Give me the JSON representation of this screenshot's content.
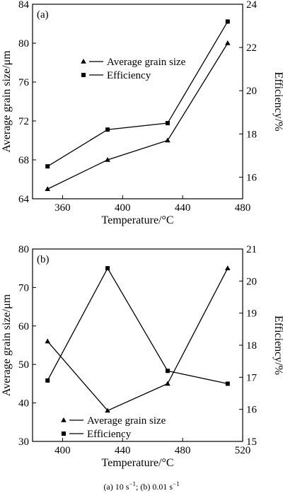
{
  "caption": {
    "a_prefix": "(a) 10 s",
    "a_exp": "−1",
    "sep": "; (b) 0.01 s",
    "b_exp": "−1"
  },
  "chart_data": [
    {
      "type": "line",
      "panel_label": "(a)",
      "x": [
        350,
        390,
        430,
        470
      ],
      "xlabel": "Temperature/°C",
      "xlim": [
        340,
        480
      ],
      "xticks": [
        360,
        400,
        440,
        480
      ],
      "ylabel_left": "Average grain size/μm",
      "ylim_left": [
        64,
        84
      ],
      "yticks_left": [
        64,
        68,
        72,
        76,
        80,
        84
      ],
      "ylabel_right": "Efficiency/%",
      "ylim_right": [
        15,
        24
      ],
      "yticks_right": [
        16,
        18,
        20,
        22,
        24
      ],
      "legend_position": "upper-middle",
      "series": [
        {
          "name": "Average grain size",
          "axis": "left",
          "marker": "triangle",
          "values": [
            65,
            68,
            70,
            80
          ]
        },
        {
          "name": "Efficiency",
          "axis": "right",
          "marker": "square",
          "values": [
            16.5,
            18.2,
            18.5,
            23.2
          ]
        }
      ],
      "grid": false
    },
    {
      "type": "line",
      "panel_label": "(b)",
      "x": [
        390,
        430,
        470,
        510
      ],
      "xlabel": "Temperature/°C",
      "xlim": [
        380,
        520
      ],
      "xticks": [
        400,
        440,
        480,
        520
      ],
      "ylabel_left": "Average grain size/μm",
      "ylim_left": [
        30,
        80
      ],
      "yticks_left": [
        30,
        40,
        50,
        60,
        70,
        80
      ],
      "ylabel_right": "Efficiency/%",
      "ylim_right": [
        15,
        21
      ],
      "yticks_right": [
        15,
        16,
        17,
        18,
        19,
        20,
        21
      ],
      "legend_position": "lower-middle",
      "series": [
        {
          "name": "Average grain size",
          "axis": "left",
          "marker": "triangle",
          "values": [
            56,
            38,
            45,
            75
          ]
        },
        {
          "name": "Efficiency",
          "axis": "right",
          "marker": "square",
          "values": [
            16.9,
            20.4,
            17.2,
            16.8
          ]
        }
      ],
      "grid": false
    }
  ]
}
